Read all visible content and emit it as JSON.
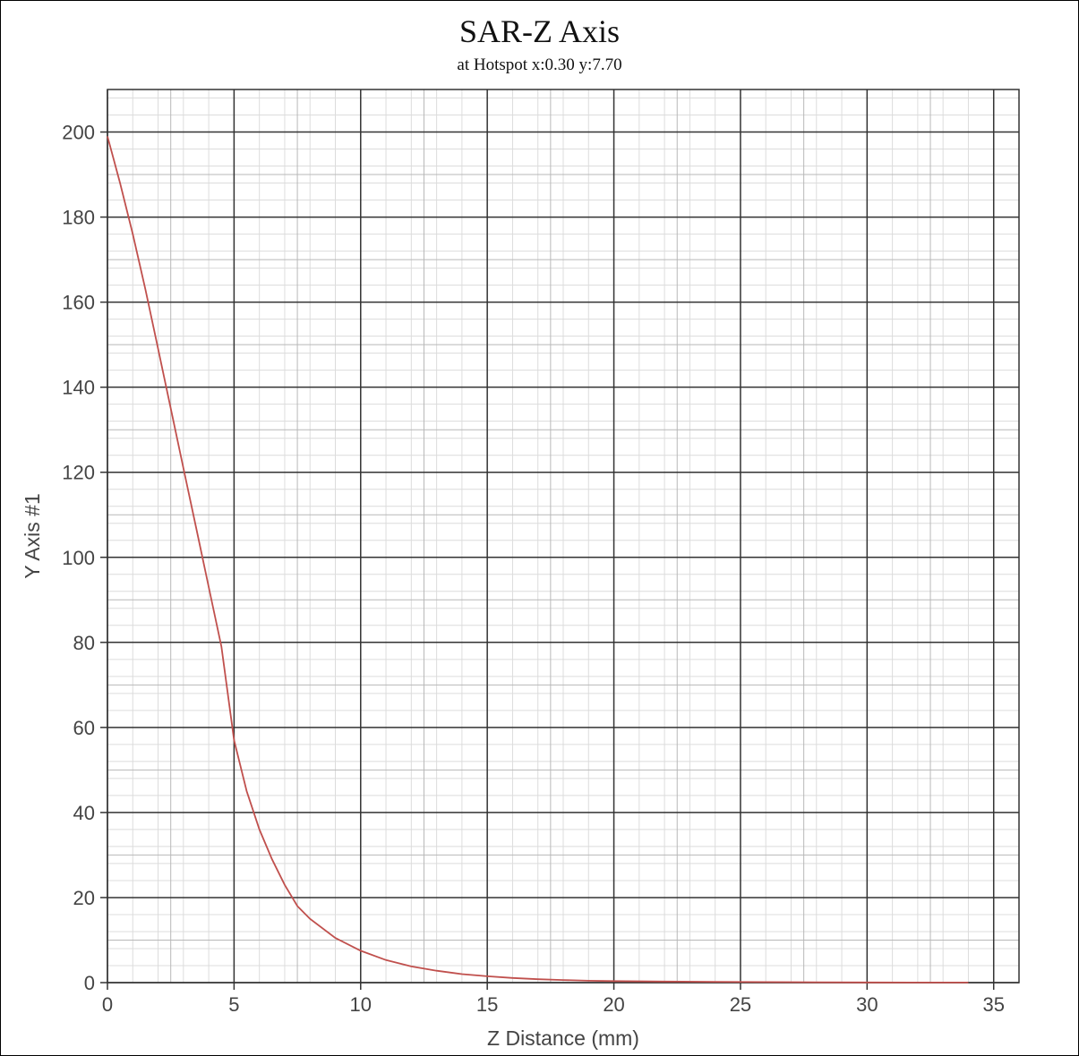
{
  "chart_data": {
    "type": "line",
    "title": "SAR-Z Axis",
    "subtitle": "at Hotspot x:0.30 y:7.70",
    "xlabel": "Z Distance (mm)",
    "ylabel": "Y Axis #1",
    "xlim": [
      0,
      36
    ],
    "ylim": [
      0,
      210
    ],
    "xticks": [
      0,
      5,
      10,
      15,
      20,
      25,
      30,
      35
    ],
    "yticks": [
      0,
      20,
      40,
      60,
      80,
      100,
      120,
      140,
      160,
      180,
      200
    ],
    "grid": true,
    "legend": "none",
    "series": [
      {
        "color": "#c0504d",
        "x": [
          0,
          0.5,
          1,
          1.5,
          2,
          2.5,
          3,
          3.5,
          4,
          4.5,
          5,
          5.5,
          6,
          6.5,
          7,
          7.5,
          8,
          9,
          10,
          11,
          12,
          13,
          14,
          15,
          16,
          17,
          18,
          19,
          20,
          22,
          24,
          26,
          28,
          30,
          32,
          34
        ],
        "y": [
          199,
          188,
          176,
          163,
          149,
          135,
          121,
          107,
          93,
          79,
          57,
          45,
          36,
          29,
          23,
          18,
          15,
          10.5,
          7.5,
          5.3,
          3.8,
          2.8,
          2.0,
          1.5,
          1.1,
          0.8,
          0.6,
          0.45,
          0.35,
          0.25,
          0.18,
          0.12,
          0.08,
          0.05,
          0.03,
          0.02
        ]
      }
    ]
  }
}
